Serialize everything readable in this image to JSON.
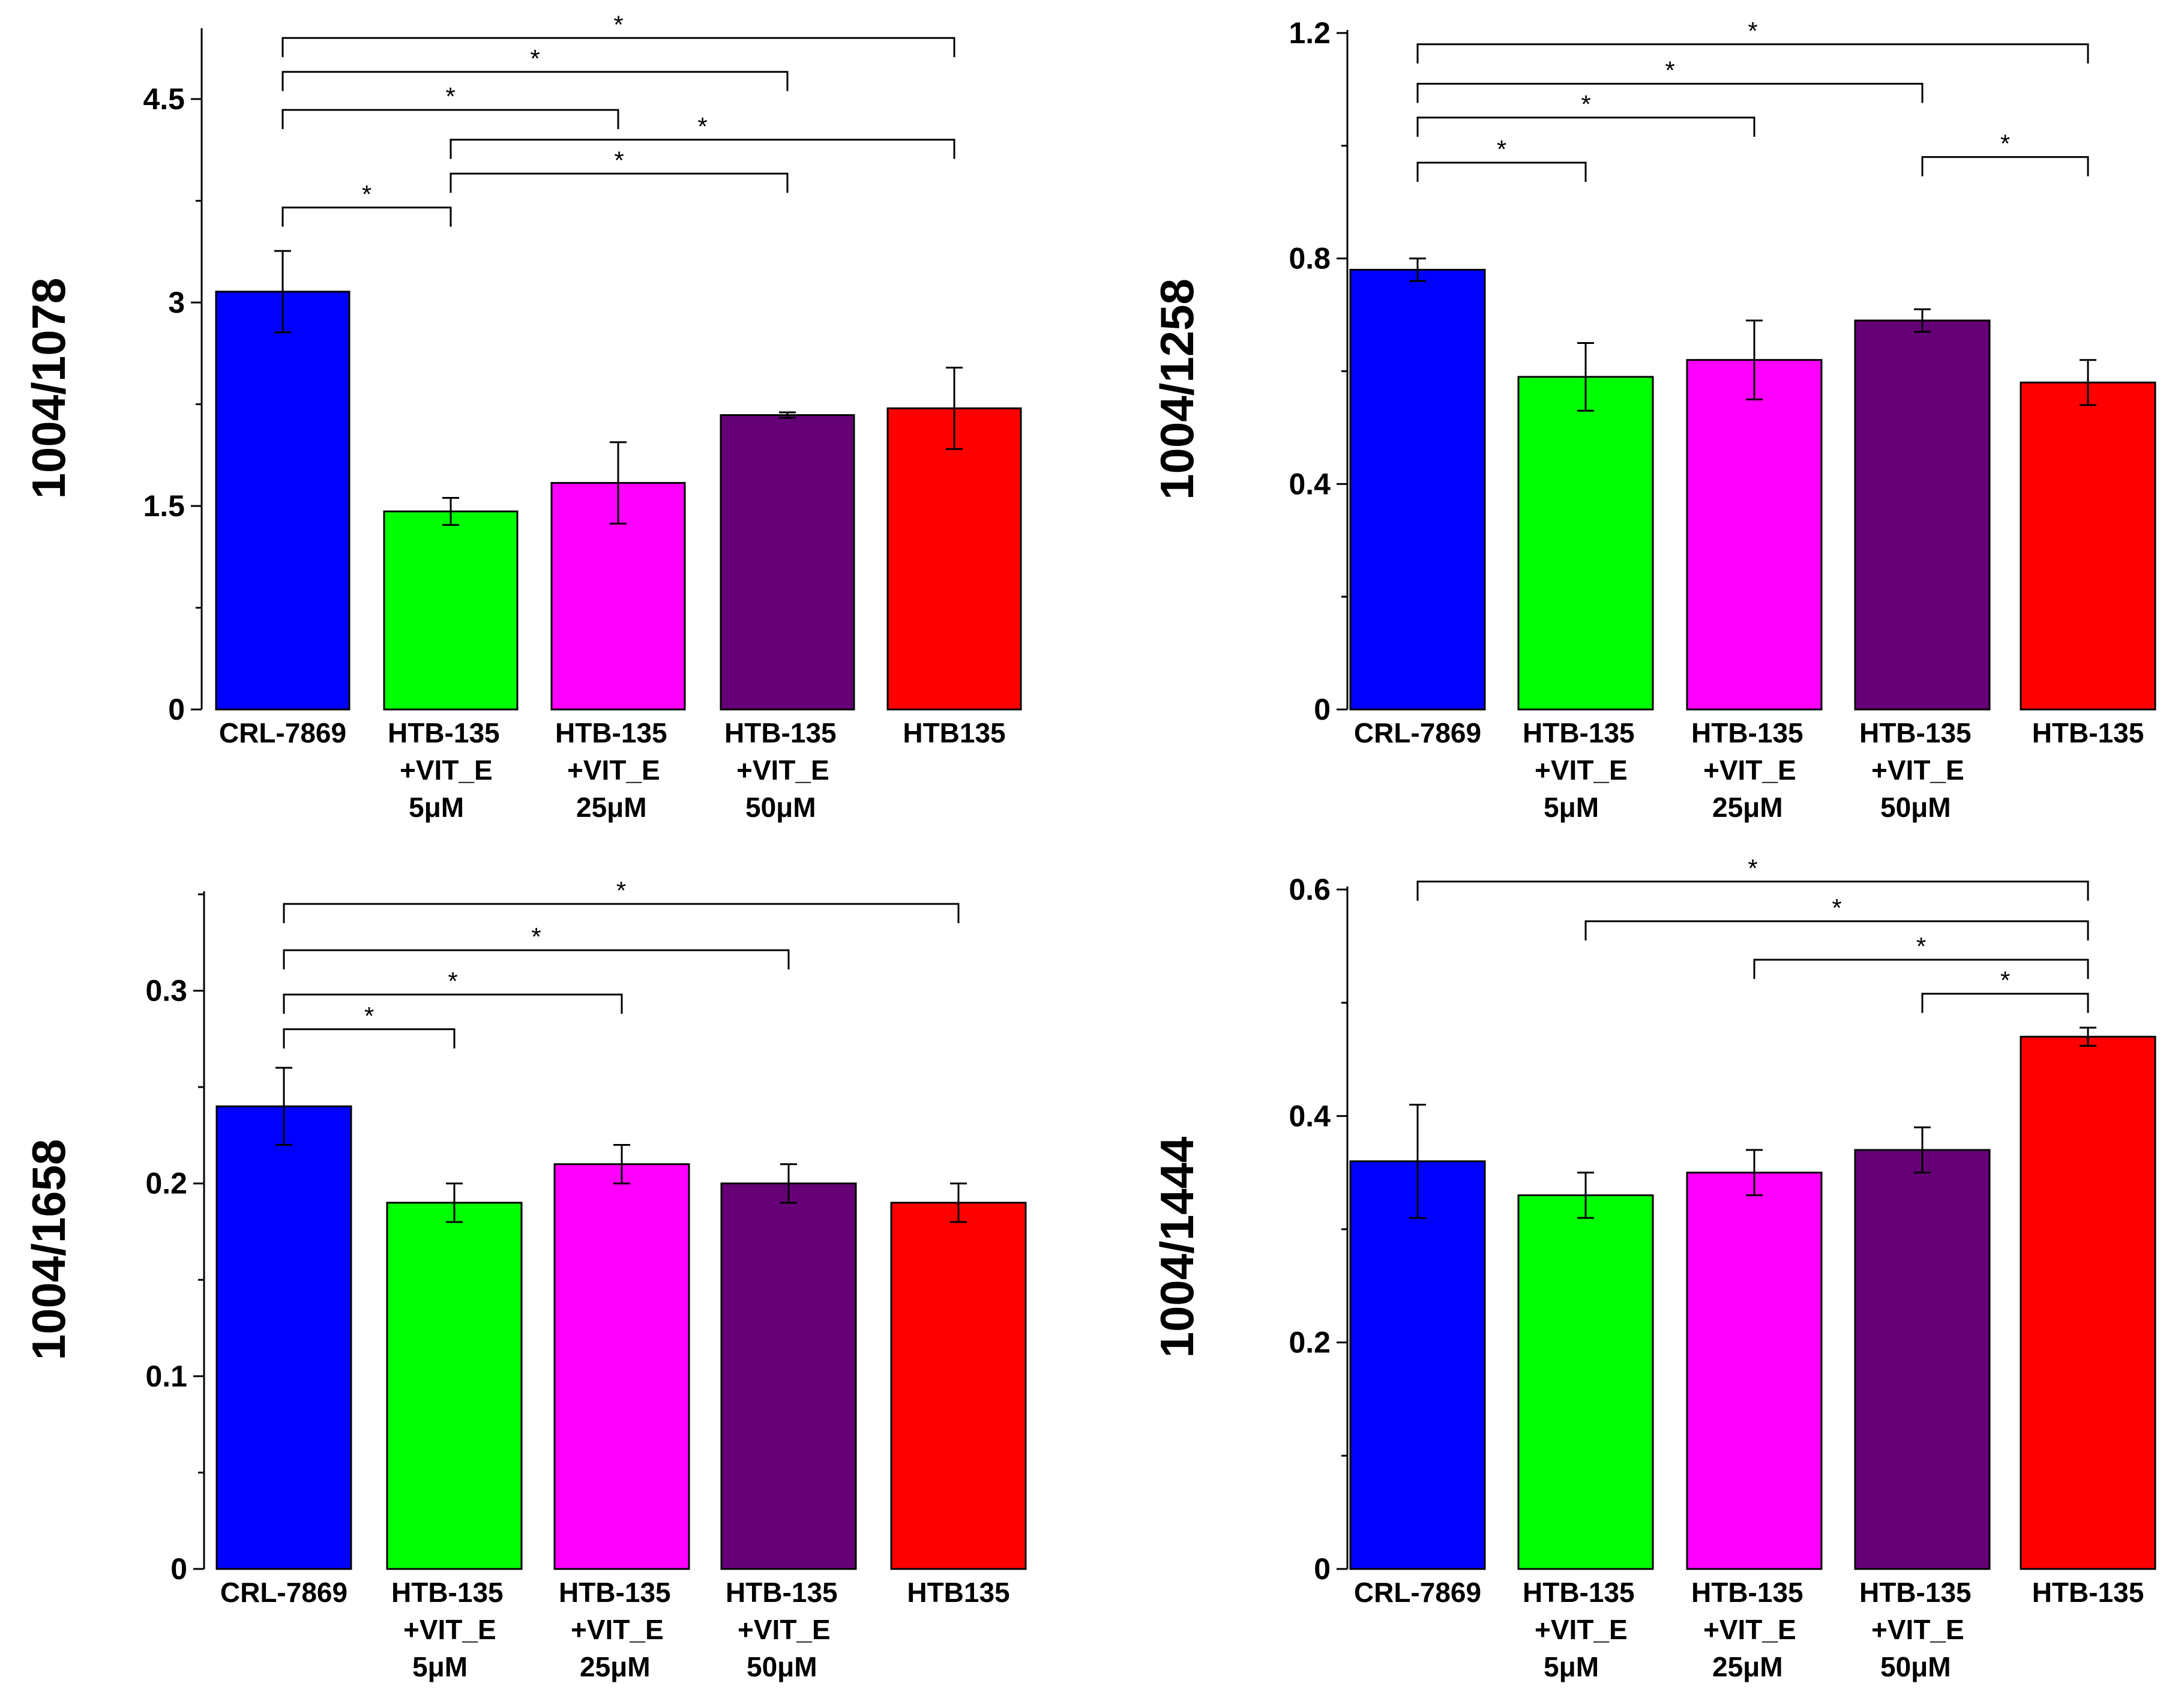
{
  "colors": {
    "blue": "#0000ff",
    "green": "#00ff00",
    "magenta": "#ff00ff",
    "purple": "#660077",
    "red": "#ff0000"
  },
  "chart_data": [
    {
      "type": "bar",
      "ylabel": "1004/1078",
      "ylim": [
        0,
        5.0
      ],
      "yticks": [
        "0",
        "1.5",
        "3",
        "4.5"
      ],
      "ytick_values": [
        0,
        1.5,
        3,
        4.5
      ],
      "categories": [
        [
          "CRL-7869"
        ],
        [
          "HTB-135",
          "+VIT_E",
          "5μM"
        ],
        [
          "HTB-135",
          "+VIT_E",
          "25μM"
        ],
        [
          "HTB-135",
          "+VIT_E",
          "50μM"
        ],
        [
          "HTB135"
        ]
      ],
      "values": [
        3.08,
        1.46,
        1.67,
        2.17,
        2.22
      ],
      "errors": [
        0.3,
        0.1,
        0.3,
        0.02,
        0.3
      ],
      "significance": [
        {
          "from": 0,
          "to": 1,
          "level": 3.7,
          "label": "*"
        },
        {
          "from": 1,
          "to": 3,
          "level": 3.95,
          "label": "*"
        },
        {
          "from": 1,
          "to": 4,
          "level": 4.2,
          "label": "*"
        },
        {
          "from": 0,
          "to": 2,
          "level": 4.42,
          "label": "*"
        },
        {
          "from": 0,
          "to": 3,
          "level": 4.7,
          "label": "*"
        },
        {
          "from": 0,
          "to": 4,
          "level": 4.95,
          "label": "*"
        }
      ]
    },
    {
      "type": "bar",
      "ylabel": "1004/1258",
      "ylim": [
        0,
        1.2
      ],
      "yticks": [
        "0",
        "0.4",
        "0.8",
        "1.2"
      ],
      "ytick_values": [
        0,
        0.4,
        0.8,
        1.2
      ],
      "categories": [
        [
          "CRL-7869"
        ],
        [
          "HTB-135",
          "+VIT_E",
          "5μM"
        ],
        [
          "HTB-135",
          "+VIT_E",
          "25μM"
        ],
        [
          "HTB-135",
          "+VIT_E",
          "50μM"
        ],
        [
          "HTB-135"
        ]
      ],
      "values": [
        0.78,
        0.59,
        0.62,
        0.69,
        0.58
      ],
      "errors": [
        0.02,
        0.06,
        0.07,
        0.02,
        0.04
      ],
      "significance": [
        {
          "from": 0,
          "to": 1,
          "level": 0.97,
          "label": "*"
        },
        {
          "from": 3,
          "to": 4,
          "level": 0.98,
          "label": "*"
        },
        {
          "from": 0,
          "to": 2,
          "level": 1.05,
          "label": "*"
        },
        {
          "from": 0,
          "to": 3,
          "level": 1.11,
          "label": "*"
        },
        {
          "from": 0,
          "to": 4,
          "level": 1.18,
          "label": "*"
        }
      ]
    },
    {
      "type": "bar",
      "ylabel": "1004/1658",
      "ylim": [
        0,
        0.35
      ],
      "yticks": [
        "0",
        "0.1",
        "0.2",
        "0.3"
      ],
      "ytick_values": [
        0,
        0.1,
        0.2,
        0.3
      ],
      "categories": [
        [
          "CRL-7869"
        ],
        [
          "HTB-135",
          "+VIT_E",
          "5μM"
        ],
        [
          "HTB-135",
          "+VIT_E",
          "25μM"
        ],
        [
          "HTB-135",
          "+VIT_E",
          "50μM"
        ],
        [
          "HTB135"
        ]
      ],
      "values": [
        0.24,
        0.19,
        0.21,
        0.2,
        0.19
      ],
      "errors": [
        0.02,
        0.01,
        0.01,
        0.01,
        0.01
      ],
      "significance": [
        {
          "from": 0,
          "to": 1,
          "level": 0.28,
          "label": "*"
        },
        {
          "from": 0,
          "to": 2,
          "level": 0.298,
          "label": "*"
        },
        {
          "from": 0,
          "to": 3,
          "level": 0.321,
          "label": "*"
        },
        {
          "from": 0,
          "to": 4,
          "level": 0.345,
          "label": "*"
        }
      ]
    },
    {
      "type": "bar",
      "ylabel": "1004/1444",
      "ylim": [
        0,
        0.6
      ],
      "yticks": [
        "0",
        "0.2",
        "0.4",
        "0.6"
      ],
      "ytick_values": [
        0,
        0.2,
        0.4,
        0.6
      ],
      "categories": [
        [
          "CRL-7869"
        ],
        [
          "HTB-135",
          "+VIT_E",
          "5μM"
        ],
        [
          "HTB-135",
          "+VIT_E",
          "25μM"
        ],
        [
          "HTB-135",
          "+VIT_E",
          "50μM"
        ],
        [
          "HTB-135"
        ]
      ],
      "values": [
        0.36,
        0.33,
        0.35,
        0.37,
        0.47
      ],
      "errors": [
        0.05,
        0.02,
        0.02,
        0.02,
        0.008
      ],
      "significance": [
        {
          "from": 3,
          "to": 4,
          "level": 0.508,
          "label": "*"
        },
        {
          "from": 2,
          "to": 4,
          "level": 0.538,
          "label": "*"
        },
        {
          "from": 1,
          "to": 4,
          "level": 0.572,
          "label": "*"
        },
        {
          "from": 0,
          "to": 4,
          "level": 0.607,
          "label": "*"
        }
      ]
    }
  ]
}
